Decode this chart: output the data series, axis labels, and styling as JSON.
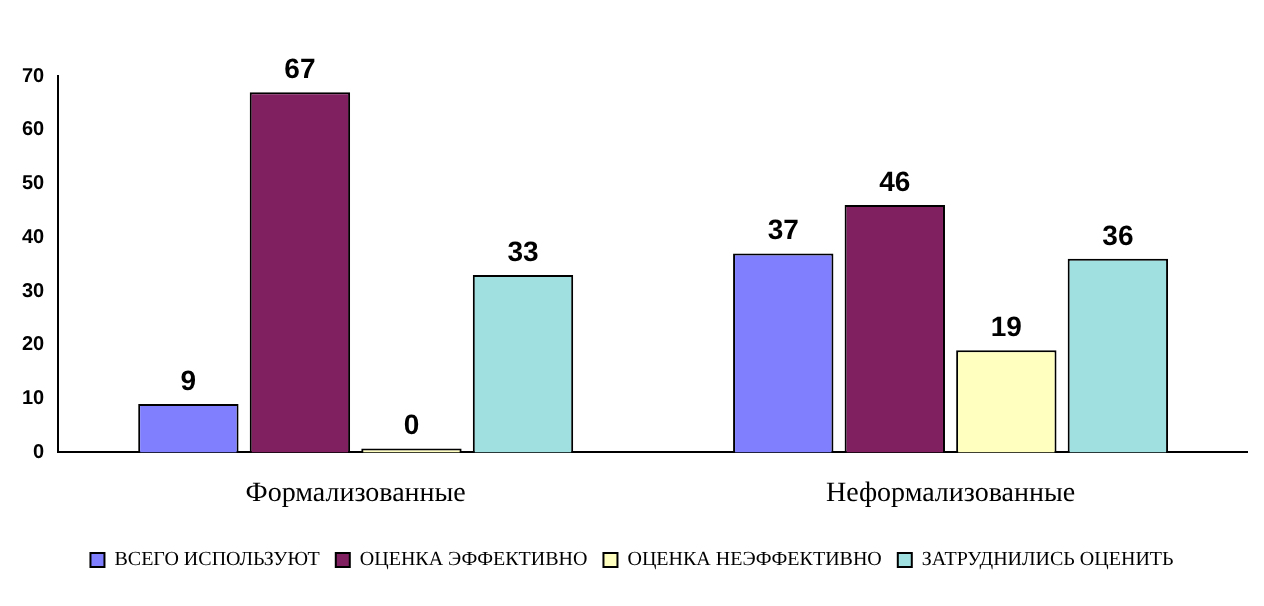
{
  "chart_data": {
    "type": "bar",
    "categories": [
      "Формализованные",
      "Неформализованные"
    ],
    "series": [
      {
        "name": "ВСЕГО ИСПОЛЬЗУЮТ",
        "color": "#8080ff",
        "values": [
          9,
          37
        ]
      },
      {
        "name": "ОЦЕНКА ЭФФЕКТИВНО",
        "color": "#802060",
        "values": [
          67,
          46
        ]
      },
      {
        "name": "ОЦЕНКА НЕЭФФЕКТИВНО",
        "color": "#ffffc0",
        "values": [
          0,
          19
        ]
      },
      {
        "name": "ЗАТРУДНИЛИСЬ ОЦЕНИТЬ",
        "color": "#a0e0e0",
        "values": [
          33,
          36
        ]
      }
    ],
    "ylim": [
      0,
      70
    ],
    "yticks": [
      0,
      10,
      20,
      30,
      40,
      50,
      60,
      70
    ],
    "grid": false,
    "legend": "bottom",
    "data_labels": true
  }
}
